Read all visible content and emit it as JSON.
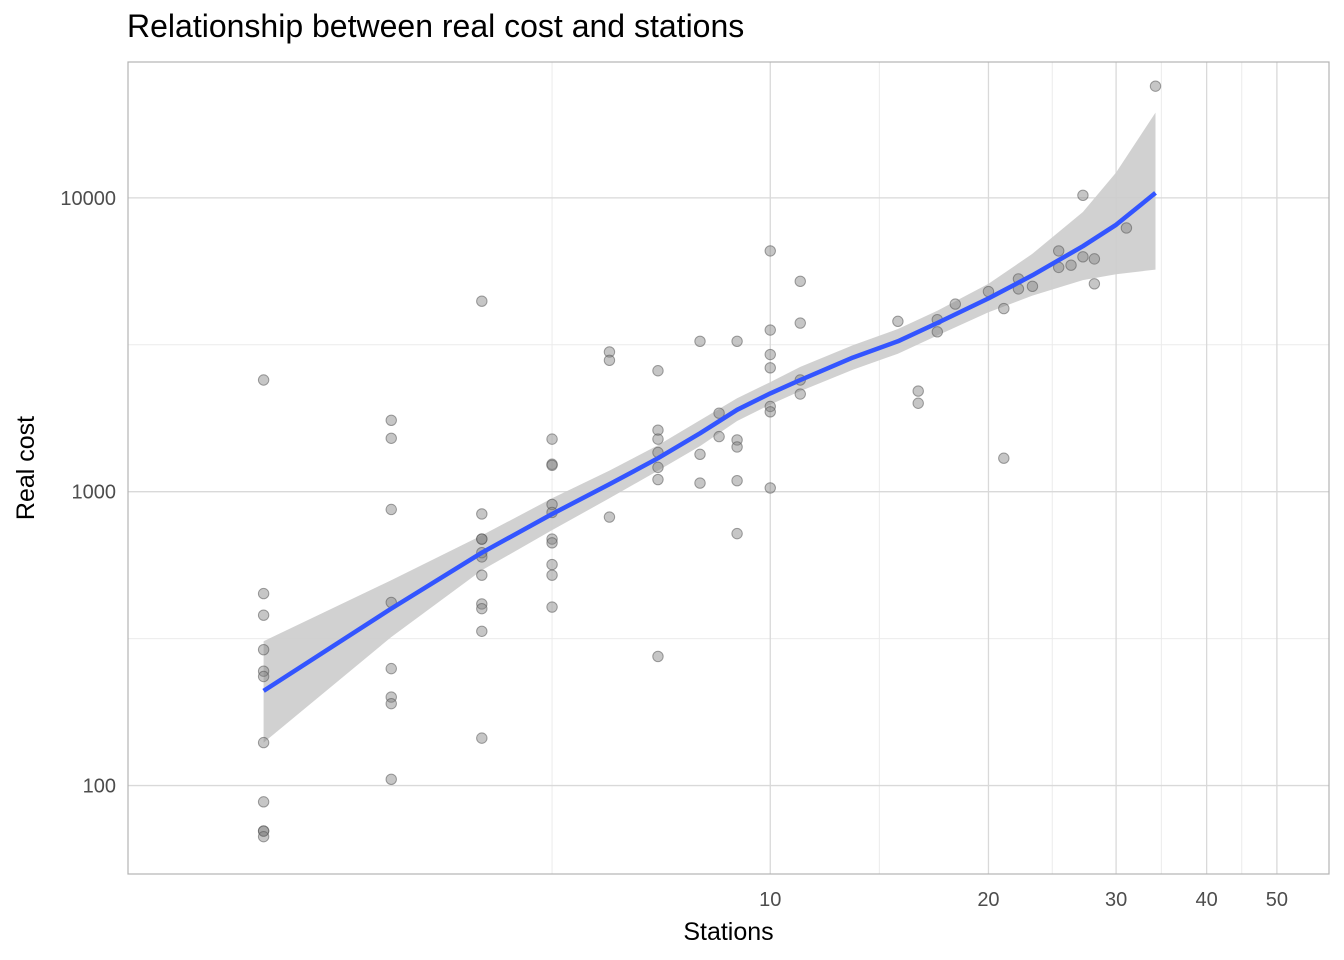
{
  "chart_data": {
    "type": "scatter",
    "title": "Relationship between real cost and stations",
    "xlabel": "Stations",
    "ylabel": "Real cost",
    "x_scale": "log",
    "y_scale": "log",
    "xlim": [
      1.3,
      59
    ],
    "ylim": [
      50,
      29000
    ],
    "x_ticks": [
      10,
      20,
      30,
      40,
      50
    ],
    "y_ticks": [
      100,
      1000,
      10000
    ],
    "grid": true,
    "legend": "none",
    "point_color": "#808080",
    "line_color": "#3355ff",
    "band_color": "#cccccc",
    "series": [
      {
        "type": "scatter",
        "points": [
          [
            2,
            2400
          ],
          [
            2,
            450
          ],
          [
            2,
            380
          ],
          [
            2,
            290
          ],
          [
            2,
            245
          ],
          [
            2,
            235
          ],
          [
            2,
            140
          ],
          [
            2,
            88
          ],
          [
            2,
            70
          ],
          [
            2,
            70
          ],
          [
            2,
            67
          ],
          [
            3,
            1750
          ],
          [
            3,
            1520
          ],
          [
            3,
            870
          ],
          [
            3,
            420
          ],
          [
            3,
            250
          ],
          [
            3,
            200
          ],
          [
            3,
            190
          ],
          [
            3,
            105
          ],
          [
            4,
            4450
          ],
          [
            4,
            840
          ],
          [
            4,
            690
          ],
          [
            4,
            690
          ],
          [
            4,
            620
          ],
          [
            4,
            600
          ],
          [
            4,
            520
          ],
          [
            4,
            415
          ],
          [
            4,
            400
          ],
          [
            4,
            335
          ],
          [
            4,
            145
          ],
          [
            5,
            1510
          ],
          [
            5,
            1240
          ],
          [
            5,
            1230
          ],
          [
            5,
            905
          ],
          [
            5,
            850
          ],
          [
            5,
            690
          ],
          [
            5,
            670
          ],
          [
            5,
            565
          ],
          [
            5,
            520
          ],
          [
            5,
            405
          ],
          [
            6,
            2990
          ],
          [
            6,
            2800
          ],
          [
            6,
            820
          ],
          [
            7,
            2580
          ],
          [
            7,
            1620
          ],
          [
            7,
            1510
          ],
          [
            7,
            1360
          ],
          [
            7,
            1210
          ],
          [
            7,
            1100
          ],
          [
            7,
            275
          ],
          [
            8,
            3250
          ],
          [
            8,
            1340
          ],
          [
            8,
            1070
          ],
          [
            8.5,
            1850
          ],
          [
            8.5,
            1540
          ],
          [
            9,
            3250
          ],
          [
            9,
            1500
          ],
          [
            9,
            1420
          ],
          [
            9,
            1090
          ],
          [
            9,
            720
          ],
          [
            10,
            6600
          ],
          [
            10,
            3550
          ],
          [
            10,
            2930
          ],
          [
            10,
            2640
          ],
          [
            10,
            1950
          ],
          [
            10,
            1870
          ],
          [
            10,
            1030
          ],
          [
            11,
            5200
          ],
          [
            11,
            3750
          ],
          [
            11,
            2400
          ],
          [
            11,
            2150
          ],
          [
            15,
            3800
          ],
          [
            16,
            2200
          ],
          [
            16,
            2000
          ],
          [
            17,
            3850
          ],
          [
            17,
            3500
          ],
          [
            18,
            4350
          ],
          [
            20,
            4800
          ],
          [
            21,
            4200
          ],
          [
            21,
            1300
          ],
          [
            22,
            5300
          ],
          [
            22,
            4900
          ],
          [
            23,
            5000
          ],
          [
            25,
            6600
          ],
          [
            25,
            5800
          ],
          [
            26,
            5900
          ],
          [
            27,
            10200
          ],
          [
            27,
            6300
          ],
          [
            28,
            6200
          ],
          [
            28,
            5100
          ],
          [
            31,
            7900
          ],
          [
            34,
            24000
          ]
        ]
      },
      {
        "type": "line",
        "x": [
          2,
          3,
          4,
          5,
          6,
          7,
          8,
          9,
          10,
          11,
          13,
          15,
          17,
          20,
          23,
          27,
          30,
          34
        ],
        "y": [
          210,
          400,
          620,
          840,
          1060,
          1300,
          1580,
          1900,
          2160,
          2400,
          2860,
          3250,
          3750,
          4550,
          5450,
          6850,
          8100,
          10400
        ]
      },
      {
        "type": "band",
        "x": [
          2,
          3,
          4,
          5,
          6,
          7,
          8,
          9,
          10,
          11,
          13,
          15,
          17,
          20,
          23,
          27,
          30,
          34
        ],
        "y_low": [
          140,
          320,
          540,
          740,
          950,
          1180,
          1430,
          1740,
          1980,
          2200,
          2600,
          2950,
          3400,
          4080,
          4650,
          5250,
          5500,
          5700
        ],
        "y_high": [
          310,
          500,
          710,
          950,
          1180,
          1440,
          1750,
          2080,
          2360,
          2660,
          3150,
          3580,
          4130,
          5100,
          6450,
          8950,
          12200,
          19500
        ]
      }
    ]
  }
}
